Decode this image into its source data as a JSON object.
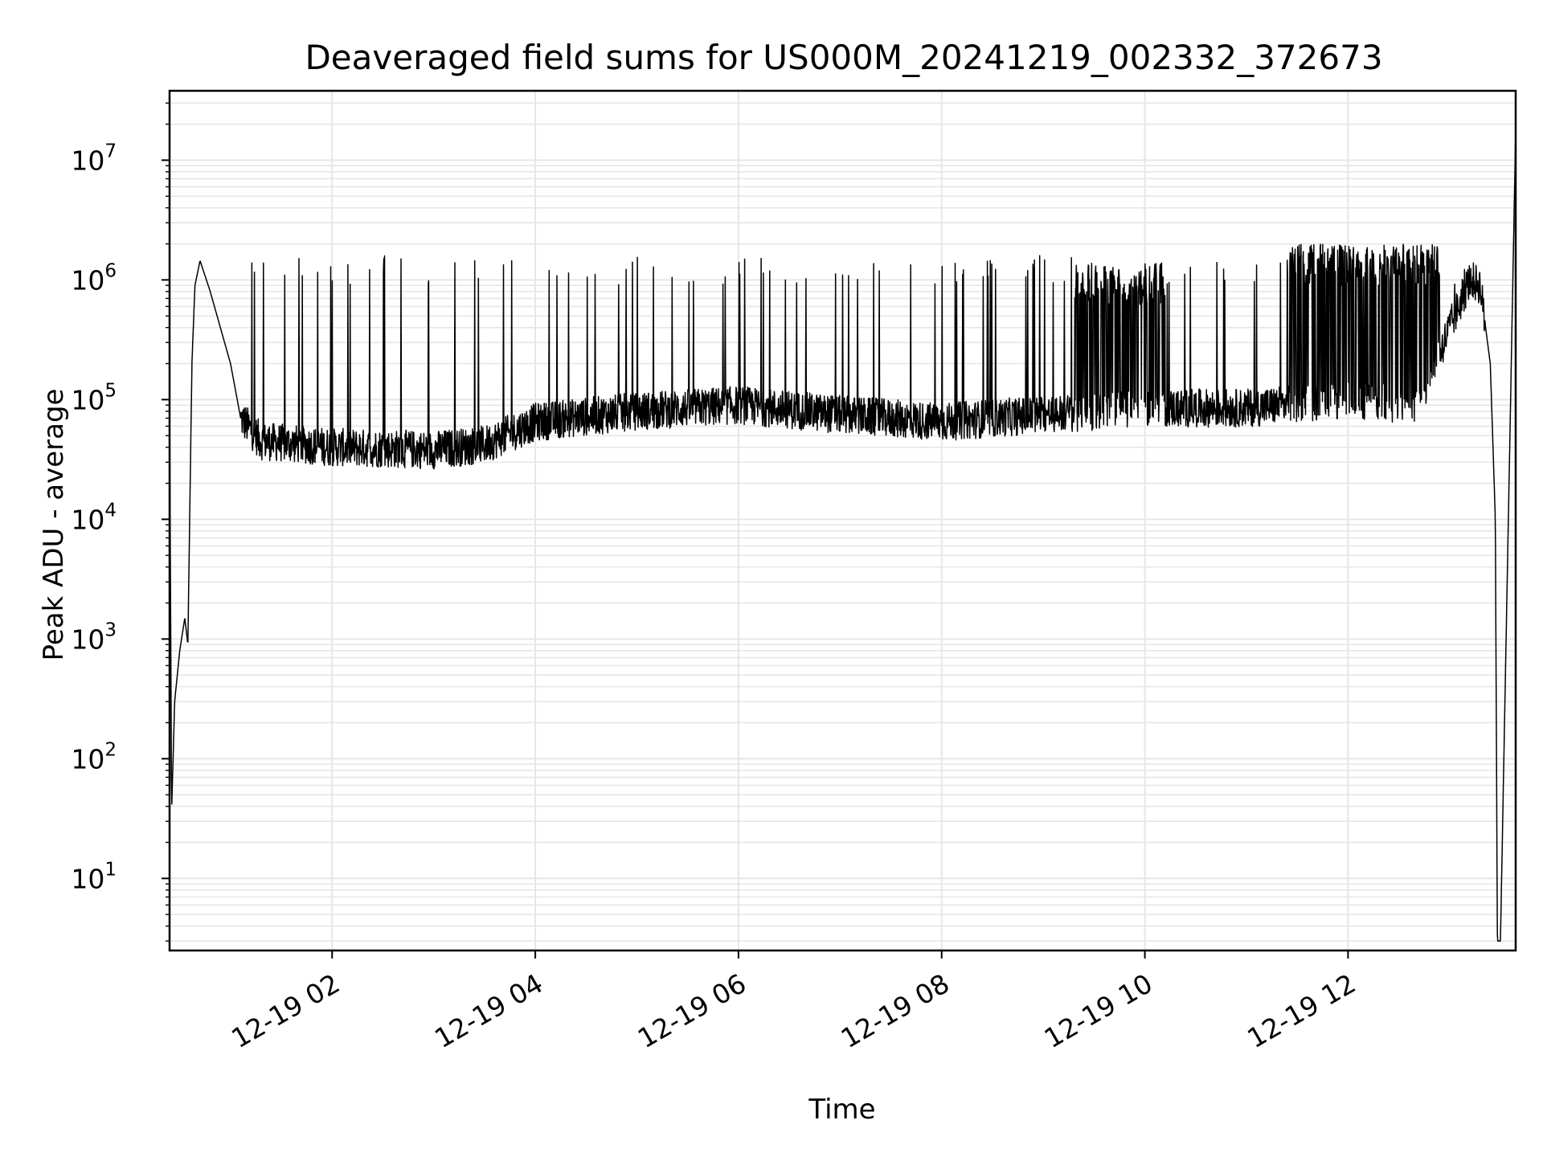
{
  "chart_data": {
    "type": "line",
    "title": "Deaveraged field sums for US000M_20241219_002332_372673",
    "xlabel": "Time",
    "ylabel": "Peak ADU - average",
    "yscale": "log",
    "grid": true,
    "x_tick_labels": [
      "12-19 02",
      "12-19 04",
      "12-19 06",
      "12-19 08",
      "12-19 10",
      "12-19 12"
    ],
    "x_tick_hours": [
      2,
      4,
      6,
      8,
      10,
      12
    ],
    "xlim_hours": [
      0.4,
      13.65
    ],
    "y_tick_labels": [
      {
        "base": "10",
        "exp": "1"
      },
      {
        "base": "10",
        "exp": "2"
      },
      {
        "base": "10",
        "exp": "3"
      },
      {
        "base": "10",
        "exp": "4"
      },
      {
        "base": "10",
        "exp": "5"
      },
      {
        "base": "10",
        "exp": "6"
      },
      {
        "base": "10",
        "exp": "7"
      }
    ],
    "ylim": [
      2.5,
      38000000
    ],
    "line_color": "#000000",
    "grid_color": "#e6e6e6",
    "series": [
      {
        "baseline_profile": [
          {
            "x": 0.4,
            "y": 110000
          },
          {
            "x": 0.42,
            "y": 36
          },
          {
            "x": 0.45,
            "y": 300
          },
          {
            "x": 0.5,
            "y": 800
          },
          {
            "x": 0.55,
            "y": 1500
          },
          {
            "x": 0.58,
            "y": 900
          },
          {
            "x": 0.62,
            "y": 200000
          },
          {
            "x": 0.65,
            "y": 900000
          },
          {
            "x": 0.7,
            "y": 1450000
          },
          {
            "x": 0.8,
            "y": 800000
          },
          {
            "x": 0.9,
            "y": 400000
          },
          {
            "x": 1.0,
            "y": 200000
          },
          {
            "x": 1.1,
            "y": 70000
          },
          {
            "x": 1.3,
            "y": 45000
          },
          {
            "x": 2.0,
            "y": 40000
          },
          {
            "x": 3.0,
            "y": 38000
          },
          {
            "x": 3.5,
            "y": 42000
          },
          {
            "x": 4.0,
            "y": 65000
          },
          {
            "x": 5.0,
            "y": 80000
          },
          {
            "x": 6.0,
            "y": 90000
          },
          {
            "x": 7.0,
            "y": 75000
          },
          {
            "x": 8.0,
            "y": 65000
          },
          {
            "x": 9.0,
            "y": 75000
          },
          {
            "x": 10.0,
            "y": 85000
          },
          {
            "x": 11.0,
            "y": 85000
          },
          {
            "x": 12.0,
            "y": 100000
          },
          {
            "x": 12.7,
            "y": 90000
          },
          {
            "x": 13.0,
            "y": 400000
          },
          {
            "x": 13.2,
            "y": 1000000
          },
          {
            "x": 13.3,
            "y": 900000
          },
          {
            "x": 13.4,
            "y": 200000
          },
          {
            "x": 13.45,
            "y": 10000
          },
          {
            "x": 13.47,
            "y": 3
          },
          {
            "x": 13.5,
            "y": 3
          },
          {
            "x": 13.65,
            "y": 18000000
          }
        ],
        "spike_peak": 1600000,
        "dense_spike_regions": [
          {
            "from": 9.3,
            "to": 10.2,
            "peak": 1400000
          },
          {
            "from": 11.4,
            "to": 12.9,
            "peak": 2000000
          }
        ]
      }
    ]
  }
}
